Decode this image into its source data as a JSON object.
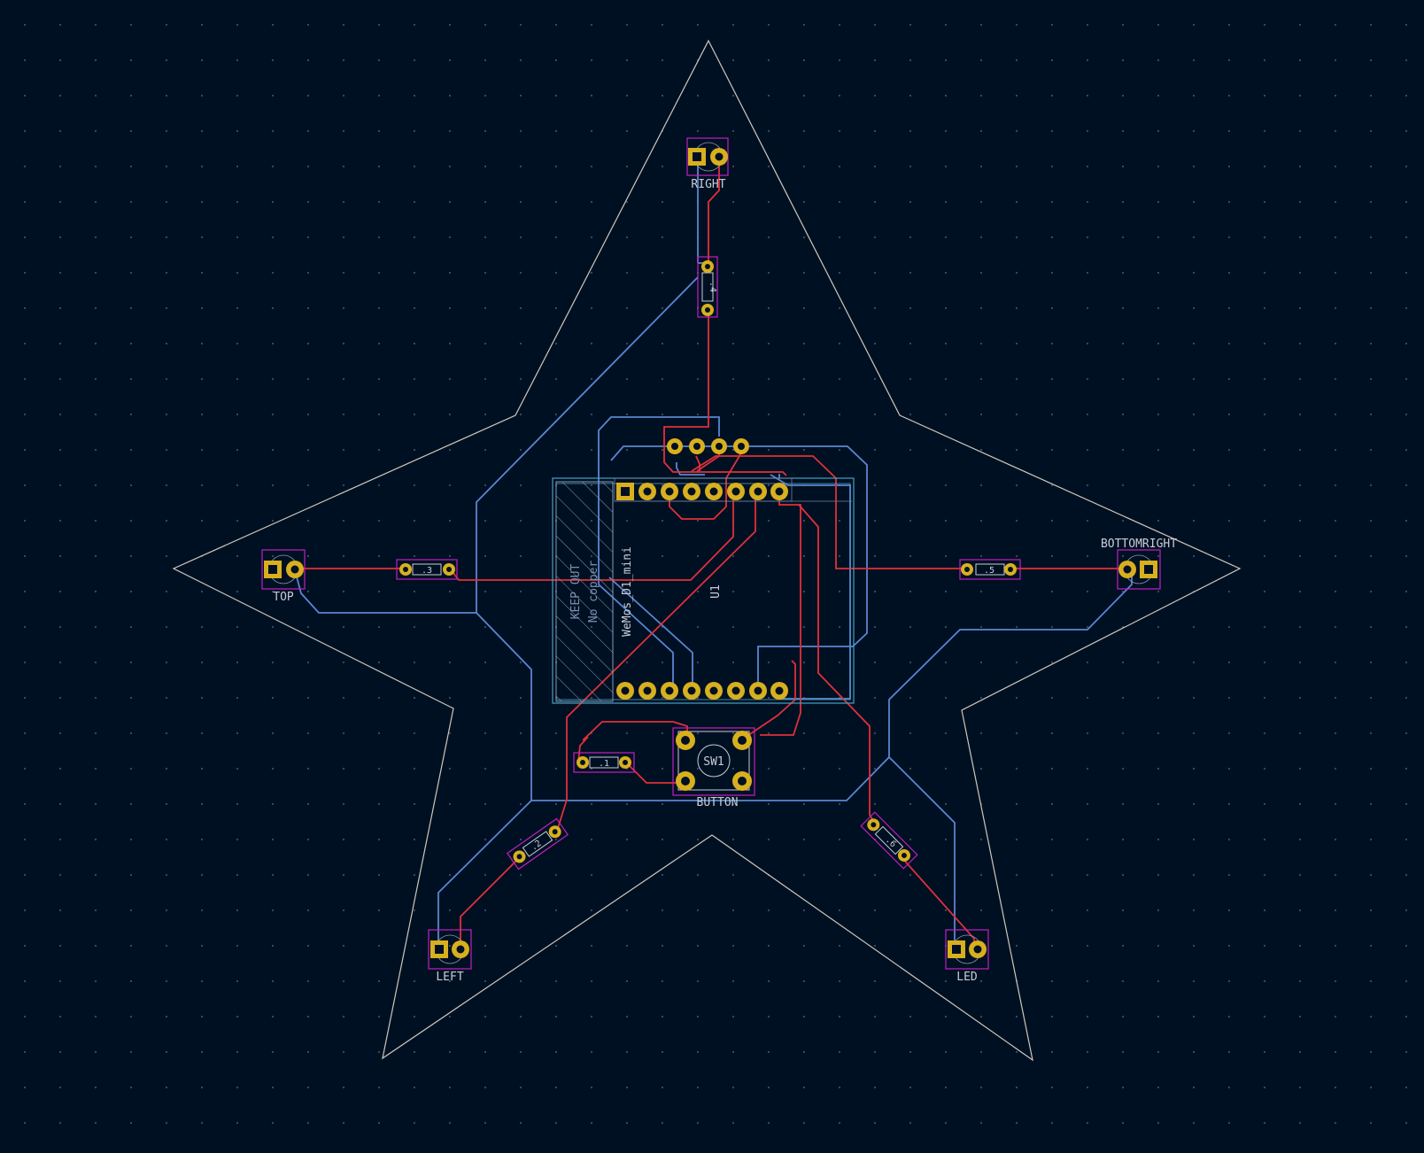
{
  "colors": {
    "background": "#001023",
    "board_edge": "#d0c8b8",
    "front_copper": "#e0303a",
    "back_copper": "#5a86d0",
    "pad": "#d8b01e",
    "courtyard": "#c020c0",
    "silkscreen": "#c8cdd6",
    "fab": "#4aa0c0",
    "keepout": "#8a9ab5"
  },
  "labels": {
    "right": "RIGHT",
    "top": "TOP",
    "bottomright": "BOTTOMRIGHT",
    "left": "LEFT",
    "led": "LED",
    "button": "BUTTON",
    "sw1": "SW1",
    "u1": "U1",
    "wemos": "WeMos_D1_mini",
    "keepout": "KEEP OUT",
    "no_copper": "No copper",
    "r1": ".1",
    "r2": ".2",
    "r3": ".3",
    "r4": ".4",
    "r5": ".5",
    "r6": ".6"
  }
}
